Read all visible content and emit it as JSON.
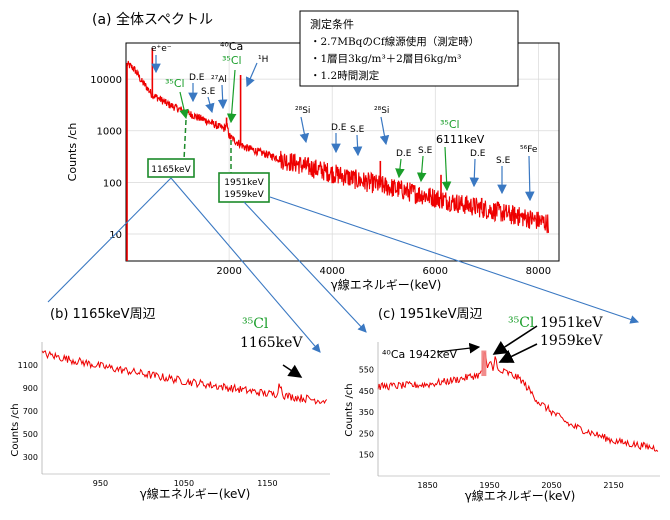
{
  "colors": {
    "spectrum": "#ee0000",
    "green_label": "#1a9e2a",
    "blue_arrow": "#3a78c2",
    "box_green": "#1c8a2a",
    "axis": "#000000",
    "grid": "#d9d9d9"
  },
  "conditions": {
    "title": "測定条件",
    "lines": [
      "・2.7MBqのCf線源使用（測定時）",
      "・1層目3kg/m³＋2層目6kg/m³",
      "・1.2時間測定"
    ]
  },
  "chart_data": [
    {
      "id": "a",
      "type": "line",
      "title": "(a) 全体スペクトル",
      "xlabel": "γ線エネルギー(keV)",
      "ylabel": "Counts /ch",
      "xlim": [
        0,
        8400
      ],
      "ylim_log": [
        3,
        50000
      ],
      "log_y": true,
      "x_ticks": [
        "2000",
        "4000",
        "6000",
        "8000"
      ],
      "x_tick_values": [
        2000,
        4000,
        6000,
        8000
      ],
      "y_ticks": [
        "10",
        "100",
        "1000",
        "10000"
      ],
      "y_tick_values": [
        10,
        100,
        1000,
        10000
      ],
      "grid": true,
      "continuum": [
        [
          0,
          20000
        ],
        [
          150,
          16000
        ],
        [
          300,
          9000
        ],
        [
          500,
          5000
        ],
        [
          800,
          3300
        ],
        [
          1000,
          2700
        ],
        [
          1200,
          2200
        ],
        [
          1400,
          1800
        ],
        [
          1600,
          1500
        ],
        [
          1800,
          1200
        ],
        [
          1900,
          1100
        ],
        [
          1951,
          1300
        ],
        [
          2000,
          800
        ],
        [
          2100,
          650
        ],
        [
          2300,
          480
        ],
        [
          2600,
          380
        ],
        [
          3000,
          280
        ],
        [
          3500,
          200
        ],
        [
          4000,
          150
        ],
        [
          4500,
          110
        ],
        [
          5000,
          85
        ],
        [
          5500,
          65
        ],
        [
          6000,
          50
        ],
        [
          6500,
          38
        ],
        [
          7000,
          30
        ],
        [
          7500,
          23
        ],
        [
          8000,
          18
        ],
        [
          8200,
          16
        ]
      ],
      "peaks": [
        [
          30,
          20000
        ],
        [
          511,
          40000
        ],
        [
          1165,
          2500
        ],
        [
          1951,
          1800
        ],
        [
          2223,
          12000
        ],
        [
          3539,
          220
        ],
        [
          4934,
          260
        ],
        [
          6111,
          140
        ],
        [
          6900,
          50
        ],
        [
          7600,
          30
        ],
        [
          7800,
          25
        ]
      ],
      "annotations": {
        "ee": "e⁺e⁻",
        "cl35_a": "³⁵Cl",
        "de1": "D.E",
        "se1": "S.E",
        "al27": "²⁷Al",
        "ca40": "⁴⁰Ca",
        "cl35_b": "³⁵Cl",
        "h1": "¹H",
        "si28_1": "²⁸Si",
        "de2": "D.E",
        "se2": "S.E",
        "si28_2": "²⁸Si",
        "de3": "D.E",
        "se3": "S.E",
        "cl35_c": "³⁵Cl",
        "e6111": "6111keV",
        "de4": "D.E",
        "se4": "S.E",
        "fe56": "⁵⁶Fe"
      },
      "callout_boxes": [
        {
          "lines": [
            "1165keV"
          ]
        },
        {
          "lines": [
            "1951keV",
            "1959keV"
          ]
        }
      ]
    },
    {
      "id": "b",
      "type": "line",
      "title": "(b) 1165keV周辺",
      "xlabel": "γ線エネルギー(keV)",
      "ylabel": "Counts /ch",
      "xlim": [
        880,
        1225
      ],
      "ylim": [
        150,
        1300
      ],
      "x_ticks": [
        "950",
        "1050",
        "1150"
      ],
      "x_tick_values": [
        950,
        1050,
        1150
      ],
      "y_ticks": [
        "300",
        "500",
        "700",
        "900",
        "1100"
      ],
      "y_tick_values": [
        300,
        500,
        700,
        900,
        1100
      ],
      "trend": [
        [
          880,
          1200
        ],
        [
          950,
          1090
        ],
        [
          1050,
          960
        ],
        [
          1150,
          850
        ],
        [
          1215,
          790
        ]
      ],
      "peaks": [
        [
          1165,
          90
        ]
      ],
      "annotations": {
        "isotope": "³⁵Cl",
        "energy": "1165keV"
      }
    },
    {
      "id": "c",
      "type": "line",
      "title": "(c) 1951keV周辺",
      "xlabel": "γ線エネルギー(keV)",
      "ylabel": "Counts /ch",
      "xlim": [
        1770,
        2225
      ],
      "ylim": [
        50,
        680
      ],
      "x_ticks": [
        "1850",
        "1950",
        "2050",
        "2150"
      ],
      "x_tick_values": [
        1850,
        1950,
        2050,
        2150
      ],
      "y_ticks": [
        "150",
        "250",
        "350",
        "450",
        "550"
      ],
      "y_tick_values": [
        150,
        250,
        350,
        450,
        550
      ],
      "trend": [
        [
          1770,
          470
        ],
        [
          1850,
          480
        ],
        [
          1900,
          505
        ],
        [
          1940,
          530
        ],
        [
          1975,
          540
        ],
        [
          2000,
          505
        ],
        [
          2030,
          395
        ],
        [
          2080,
          290
        ],
        [
          2150,
          215
        ],
        [
          2220,
          180
        ]
      ],
      "peaks": [
        [
          1942,
          100
        ],
        [
          1951,
          60
        ],
        [
          1959,
          70
        ]
      ],
      "annotations": {
        "ca": "⁴⁰Ca 1942keV",
        "isotope": "³⁵Cl",
        "energy1": "1951keV",
        "energy2": "1959keV"
      }
    }
  ]
}
